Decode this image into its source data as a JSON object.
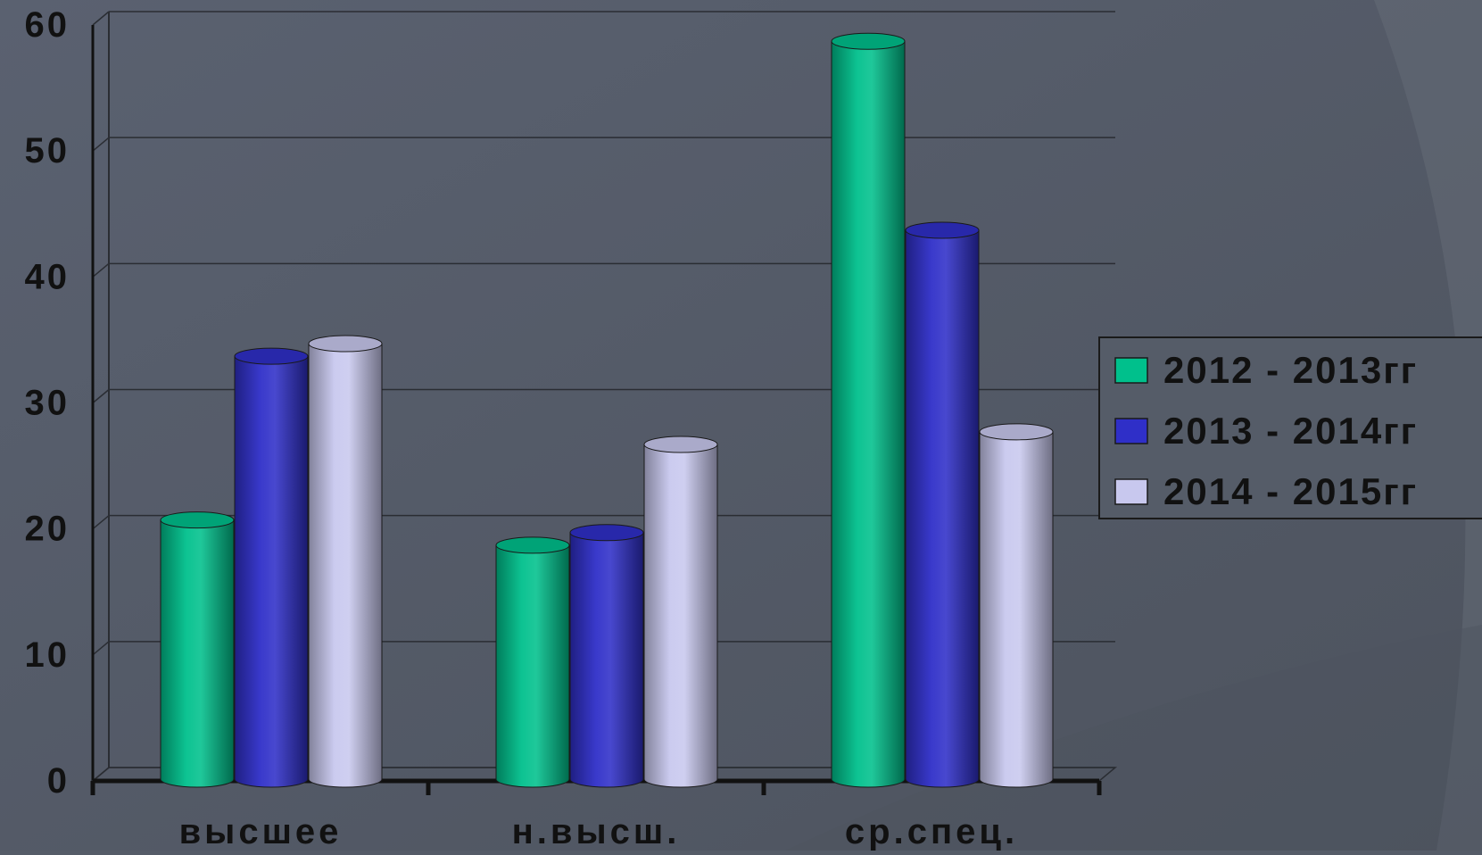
{
  "chart_data": {
    "type": "bar",
    "style": "3d-cylinder",
    "categories": [
      "высшее",
      "н.высш.",
      "ср.спец."
    ],
    "series": [
      {
        "name": "2012 - 2013гг",
        "values": [
          20,
          18,
          58
        ],
        "color": "#00c08c"
      },
      {
        "name": "2013 - 2014гг",
        "values": [
          33,
          19,
          43
        ],
        "color": "#2f2fc8"
      },
      {
        "name": "2014 - 2015гг",
        "values": [
          34,
          26,
          27
        ],
        "color": "#c8c8ee"
      }
    ],
    "yticks": [
      "0",
      "10",
      "20",
      "30",
      "40",
      "50",
      "60"
    ],
    "ylim": [
      0,
      60
    ],
    "grid": true,
    "legend_position": "right",
    "title": "",
    "xlabel": "",
    "ylabel": ""
  },
  "colors": {
    "background": "#555c68",
    "gridline": "#2a2d33",
    "axis": "#111111"
  }
}
